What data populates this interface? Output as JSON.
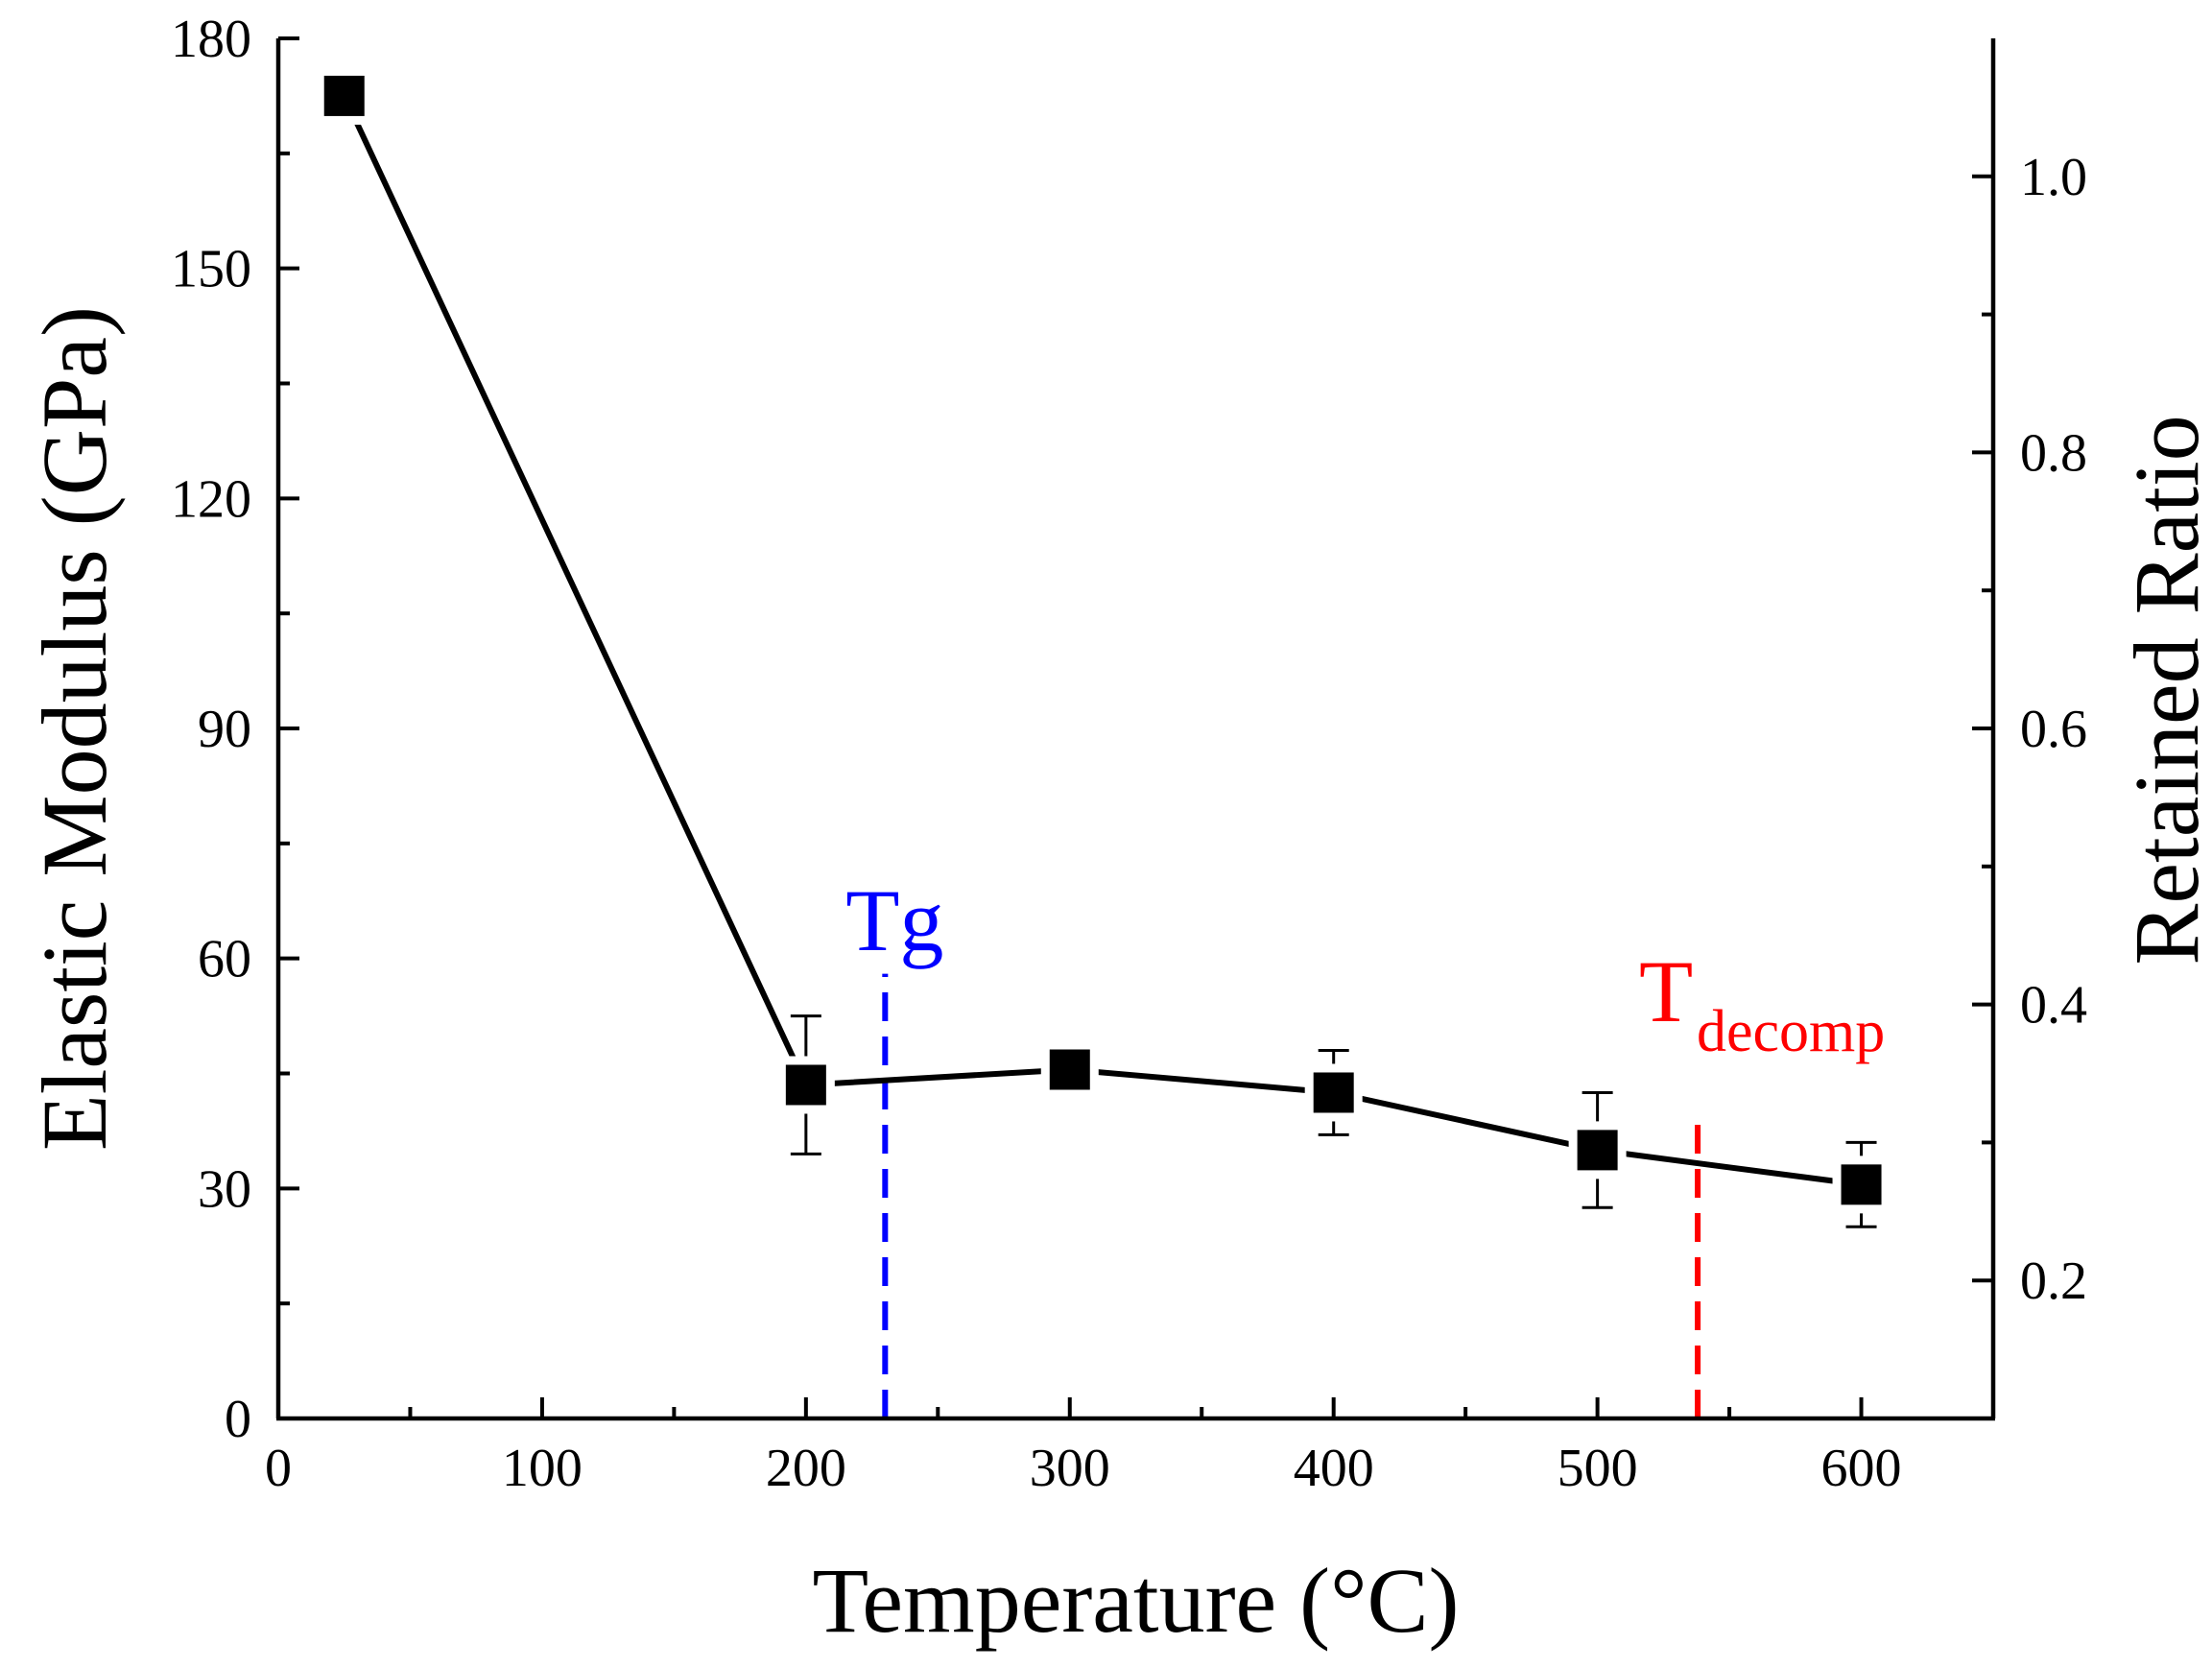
{
  "chart_data": {
    "type": "line",
    "title": "",
    "xlabel": "Temperature (°C)",
    "ylabel": "Elastic Modulus (GPa)",
    "y2label": "Retained Ratio",
    "xlim": [
      0,
      650
    ],
    "ylim": [
      0,
      180
    ],
    "y2lim": [
      0.1,
      1.1
    ],
    "x_ticks": [
      0,
      100,
      200,
      300,
      400,
      500,
      600
    ],
    "x_tick_labels": [
      "0",
      "100",
      "200",
      "300",
      "400",
      "500",
      "600"
    ],
    "y_ticks": [
      0,
      30,
      60,
      90,
      120,
      150,
      180
    ],
    "y_tick_labels": [
      "0",
      "30",
      "60",
      "90",
      "120",
      "150",
      "180"
    ],
    "y2_ticks": [
      0.2,
      0.4,
      0.6,
      0.8,
      1.0
    ],
    "y2_tick_labels": [
      "0.2",
      "0.4",
      "0.6",
      "0.8",
      "1.0"
    ],
    "series": [
      {
        "name": "Elastic Modulus",
        "marker": "square",
        "color": "#000000",
        "x": [
          25,
          200,
          300,
          400,
          500,
          600
        ],
        "y": [
          172.5,
          43.5,
          45.5,
          42.5,
          35.0,
          30.5
        ],
        "yerr": [
          0,
          9,
          0,
          5.5,
          7.5,
          5.5
        ]
      }
    ],
    "annotations": [
      {
        "name": "tg-line",
        "x": 230,
        "y_range": [
          0,
          58
        ],
        "color": "#0000ff",
        "style": "dashed",
        "label": "Tg",
        "sub": ""
      },
      {
        "name": "tdecomp-line",
        "x": 538,
        "y_range": [
          0,
          40
        ],
        "color": "#ff0000",
        "style": "dashed",
        "label": "T",
        "sub": "decomp"
      }
    ]
  }
}
